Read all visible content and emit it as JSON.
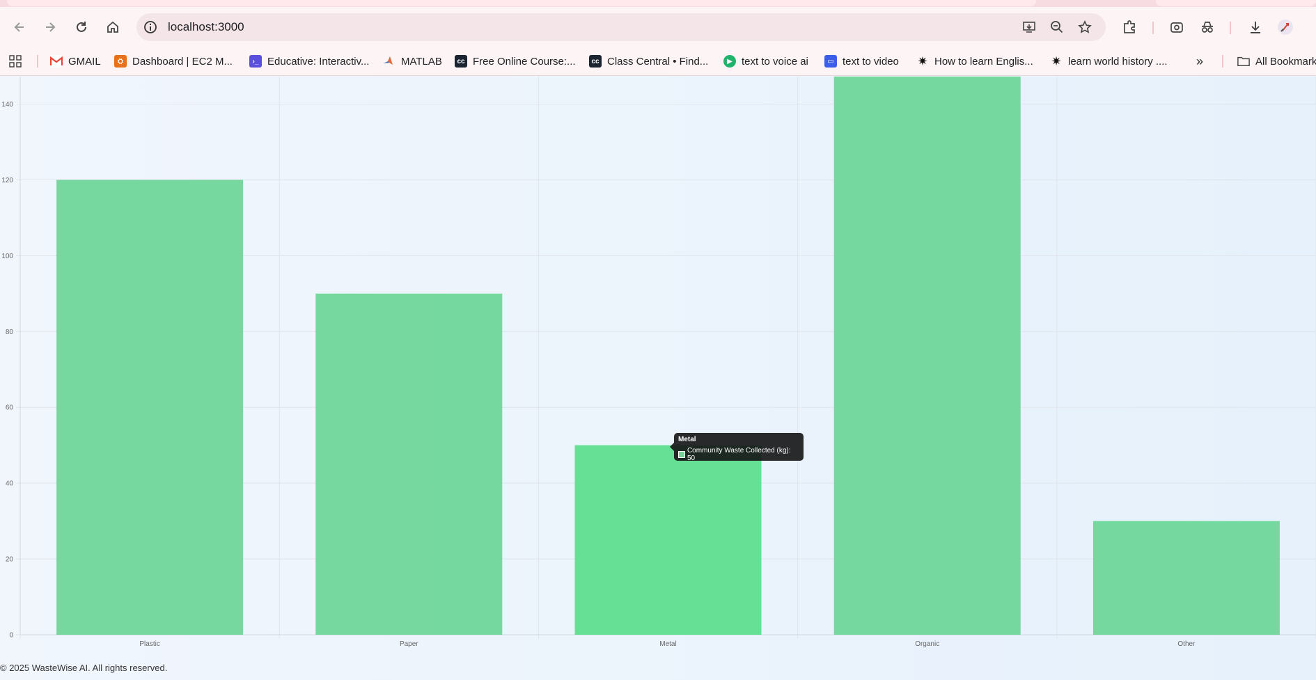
{
  "browser": {
    "url": "localhost:3000",
    "bookmarks": [
      {
        "label": "GMAIL",
        "icon": "gmail-icon",
        "color": "#ea4335"
      },
      {
        "label": "Dashboard | EC2 M...",
        "icon": "aws-icon",
        "color": "#e8711a"
      },
      {
        "label": "Educative: Interactiv...",
        "icon": "educative-icon",
        "color": "#5b4fe0"
      },
      {
        "label": "MATLAB",
        "icon": "matlab-icon",
        "color": "#e16737"
      },
      {
        "label": "Free Online Course:...",
        "icon": "class-central-icon",
        "color": "#1b2532"
      },
      {
        "label": "Class Central • Find...",
        "icon": "class-central-icon",
        "color": "#1b2532"
      },
      {
        "label": "text to voice ai",
        "icon": "play-icon",
        "color": "#1fb36b"
      },
      {
        "label": "text to video",
        "icon": "video-icon",
        "color": "#3b5ee8"
      },
      {
        "label": "How to learn Englis...",
        "icon": "sparkle-icon",
        "color": "#111111"
      },
      {
        "label": "learn world history ....",
        "icon": "sparkle-icon",
        "color": "#111111"
      }
    ],
    "all_bookmarks_label": "All Bookmarks"
  },
  "chart_data": {
    "type": "bar",
    "categories": [
      "Plastic",
      "Paper",
      "Metal",
      "Organic",
      "Other"
    ],
    "series": [
      {
        "name": "Community Waste Collected (kg)",
        "values": [
          120,
          90,
          50,
          150,
          30
        ]
      }
    ],
    "yticks": [
      0,
      20,
      40,
      60,
      80,
      100,
      120,
      140
    ],
    "ylim": [
      0,
      147
    ],
    "grid": true,
    "bar_color": "#6fd69a",
    "hover_color": "#5ede8f"
  },
  "tooltip": {
    "title": "Metal",
    "label": "Community Waste Collected (kg): 50"
  },
  "footer": {
    "text": "© 2025 WasteWise AI. All rights reserved."
  }
}
